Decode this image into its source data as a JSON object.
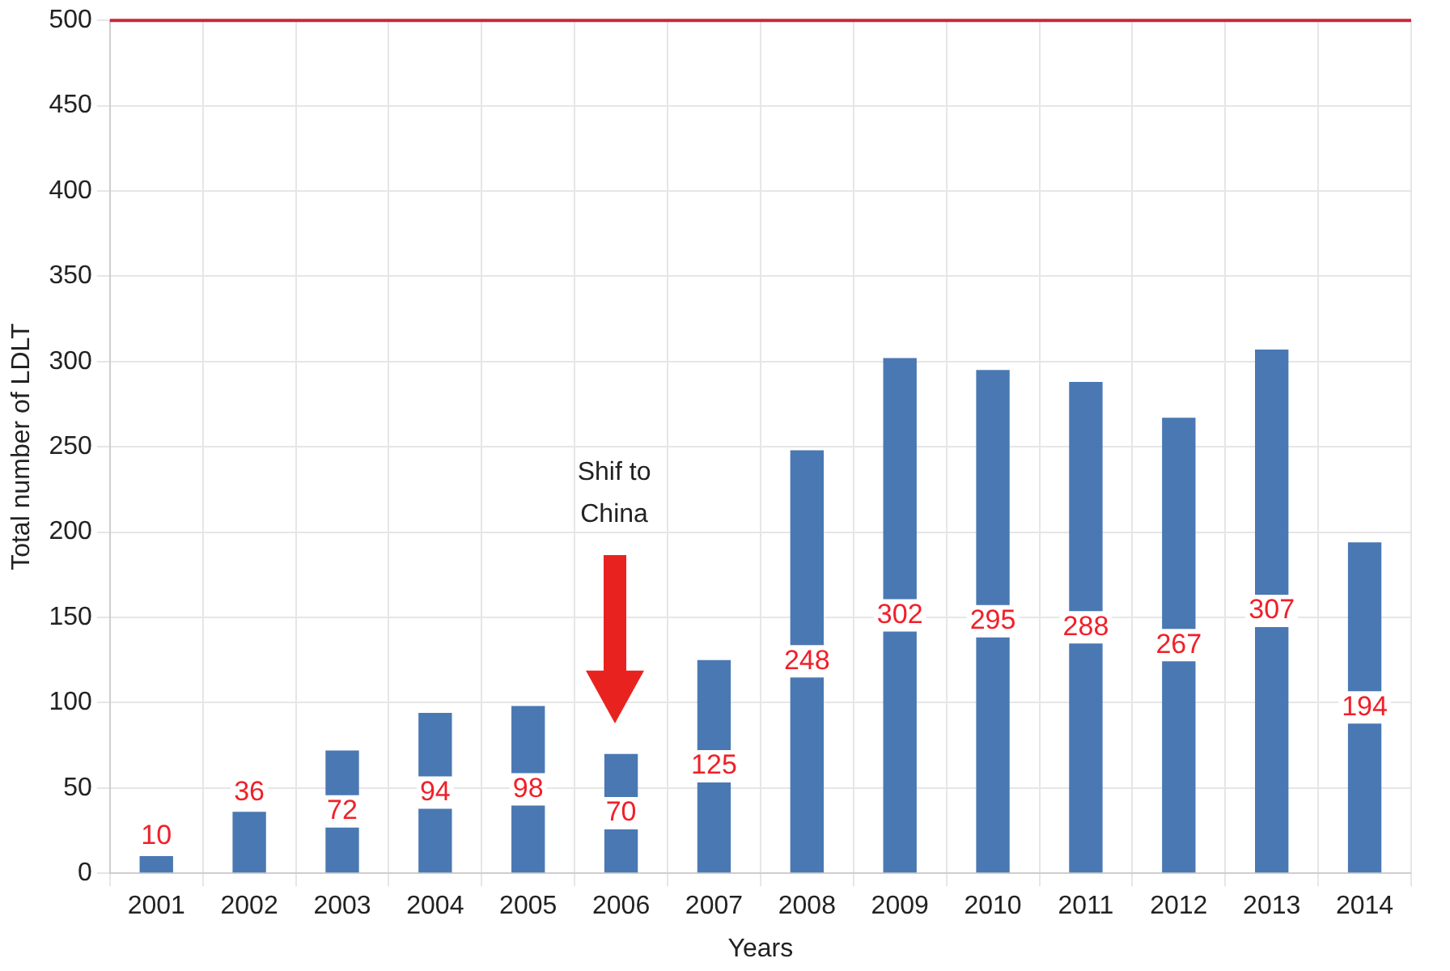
{
  "chart_data": {
    "type": "bar",
    "xlabel": "Years",
    "ylabel": "Total number of LDLT",
    "categories": [
      "2001",
      "2002",
      "2003",
      "2004",
      "2005",
      "2006",
      "2007",
      "2008",
      "2009",
      "2010",
      "2011",
      "2012",
      "2013",
      "2014"
    ],
    "values": [
      10,
      36,
      72,
      94,
      98,
      70,
      125,
      248,
      302,
      295,
      288,
      267,
      307,
      194
    ],
    "color": "#4a78b3",
    "data_labels": true,
    "ylim": [
      0,
      500
    ],
    "yticks": [
      0,
      50,
      100,
      150,
      200,
      250,
      300,
      350,
      400,
      450,
      500
    ],
    "grid": true,
    "ref_lines": [
      {
        "axis": "y",
        "value": 500,
        "color": "#c8283c"
      }
    ],
    "annotations": [
      "Shif to China"
    ]
  }
}
